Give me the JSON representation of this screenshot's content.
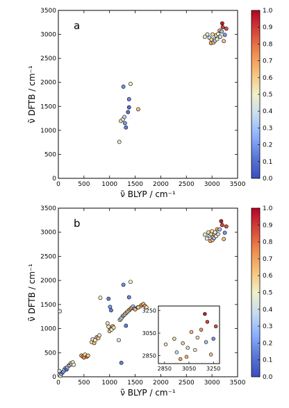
{
  "colormap": {
    "stops": [
      "#3b4cc0",
      "#5a78d6",
      "#8db0fe",
      "#c5dbf0",
      "#f0f0c8",
      "#f7c27a",
      "#ef8a4f",
      "#d6463a",
      "#b40426"
    ]
  },
  "colorbar": {
    "ticks": [
      "0.0",
      "0.1",
      "0.2",
      "0.3",
      "0.4",
      "0.5",
      "0.6",
      "0.7",
      "0.8",
      "0.9",
      "1.0"
    ]
  },
  "chart_data": [
    {
      "type": "scatter",
      "panel_label": "a",
      "xlabel": "ν̃ BLYP / cm⁻¹",
      "ylabel": "ν̃ DFTB / cm⁻¹",
      "xlim": [
        0,
        3500
      ],
      "ylim": [
        0,
        3500
      ],
      "xticks": [
        0,
        500,
        1000,
        1500,
        2000,
        2500,
        3000,
        3500
      ],
      "yticks": [
        0,
        500,
        1000,
        1500,
        2000,
        2500,
        3000,
        3500
      ],
      "clim": [
        0,
        1
      ],
      "points": [
        {
          "x": 1190,
          "y": 760,
          "c": 0.45
        },
        {
          "x": 1220,
          "y": 1195,
          "c": 0.55
        },
        {
          "x": 1260,
          "y": 1230,
          "c": 0.42
        },
        {
          "x": 1290,
          "y": 1280,
          "c": 0.35
        },
        {
          "x": 1300,
          "y": 1150,
          "c": 0.2
        },
        {
          "x": 1320,
          "y": 1060,
          "c": 0.15
        },
        {
          "x": 1360,
          "y": 1380,
          "c": 0.12
        },
        {
          "x": 1380,
          "y": 1480,
          "c": 0.1
        },
        {
          "x": 1270,
          "y": 1910,
          "c": 0.18
        },
        {
          "x": 1380,
          "y": 1650,
          "c": 0.16
        },
        {
          "x": 1410,
          "y": 1970,
          "c": 0.5
        },
        {
          "x": 1560,
          "y": 1440,
          "c": 0.62
        },
        {
          "x": 2860,
          "y": 2950,
          "c": 0.52
        },
        {
          "x": 2910,
          "y": 3000,
          "c": 0.45
        },
        {
          "x": 2950,
          "y": 2930,
          "c": 0.38
        },
        {
          "x": 2980,
          "y": 2820,
          "c": 0.68
        },
        {
          "x": 2990,
          "y": 2890,
          "c": 0.58
        },
        {
          "x": 3010,
          "y": 3000,
          "c": 0.55
        },
        {
          "x": 3030,
          "y": 2830,
          "c": 0.65
        },
        {
          "x": 3050,
          "y": 2900,
          "c": 0.42
        },
        {
          "x": 3060,
          "y": 2870,
          "c": 0.35
        },
        {
          "x": 3080,
          "y": 2980,
          "c": 0.6
        },
        {
          "x": 3100,
          "y": 2900,
          "c": 0.48
        },
        {
          "x": 3120,
          "y": 3010,
          "c": 0.52
        },
        {
          "x": 3150,
          "y": 3080,
          "c": 0.7
        },
        {
          "x": 3160,
          "y": 2950,
          "c": 0.4
        },
        {
          "x": 3190,
          "y": 3060,
          "c": 0.3
        },
        {
          "x": 3200,
          "y": 3230,
          "c": 0.95
        },
        {
          "x": 3210,
          "y": 3150,
          "c": 0.88
        },
        {
          "x": 3230,
          "y": 2860,
          "c": 0.62
        },
        {
          "x": 3250,
          "y": 2990,
          "c": 0.2
        },
        {
          "x": 3280,
          "y": 3120,
          "c": 0.85
        }
      ]
    },
    {
      "type": "scatter",
      "panel_label": "b",
      "xlabel": "ν̃ BLYP / cm⁻¹",
      "ylabel": "ν̃ DFTB / cm⁻¹",
      "xlim": [
        0,
        3500
      ],
      "ylim": [
        0,
        3500
      ],
      "xticks": [
        0,
        500,
        1000,
        1500,
        2000,
        2500,
        3000,
        3500
      ],
      "yticks": [
        0,
        500,
        1000,
        1500,
        2000,
        2500,
        3000,
        3500
      ],
      "clim": [
        0,
        1
      ],
      "points": [
        {
          "x": 20,
          "y": 40,
          "c": 0.55
        },
        {
          "x": 40,
          "y": 20,
          "c": 0.45
        },
        {
          "x": 60,
          "y": 60,
          "c": 0.3
        },
        {
          "x": 80,
          "y": 90,
          "c": 0.15
        },
        {
          "x": 100,
          "y": 110,
          "c": 0.25
        },
        {
          "x": 120,
          "y": 150,
          "c": 0.35
        },
        {
          "x": 140,
          "y": 180,
          "c": 0.2
        },
        {
          "x": 160,
          "y": 150,
          "c": 0.1
        },
        {
          "x": 180,
          "y": 200,
          "c": 0.4
        },
        {
          "x": 200,
          "y": 230,
          "c": 0.5
        },
        {
          "x": 220,
          "y": 240,
          "c": 0.3
        },
        {
          "x": 240,
          "y": 280,
          "c": 0.55
        },
        {
          "x": 260,
          "y": 260,
          "c": 0.6
        },
        {
          "x": 280,
          "y": 300,
          "c": 0.45
        },
        {
          "x": 300,
          "y": 250,
          "c": 0.5
        },
        {
          "x": 30,
          "y": 1360,
          "c": 0.45
        },
        {
          "x": 20,
          "y": 120,
          "c": 0.4
        },
        {
          "x": 450,
          "y": 440,
          "c": 0.65
        },
        {
          "x": 480,
          "y": 420,
          "c": 0.7
        },
        {
          "x": 500,
          "y": 400,
          "c": 0.75
        },
        {
          "x": 520,
          "y": 460,
          "c": 0.55
        },
        {
          "x": 560,
          "y": 420,
          "c": 0.8
        },
        {
          "x": 580,
          "y": 440,
          "c": 0.6
        },
        {
          "x": 650,
          "y": 720,
          "c": 0.55
        },
        {
          "x": 670,
          "y": 780,
          "c": 0.4
        },
        {
          "x": 700,
          "y": 700,
          "c": 0.65
        },
        {
          "x": 720,
          "y": 760,
          "c": 0.5
        },
        {
          "x": 750,
          "y": 820,
          "c": 0.7
        },
        {
          "x": 780,
          "y": 800,
          "c": 0.6
        },
        {
          "x": 800,
          "y": 860,
          "c": 0.45
        },
        {
          "x": 820,
          "y": 1640,
          "c": 0.5
        },
        {
          "x": 960,
          "y": 1110,
          "c": 0.55
        },
        {
          "x": 1000,
          "y": 950,
          "c": 0.6
        },
        {
          "x": 1020,
          "y": 1000,
          "c": 0.65
        },
        {
          "x": 1040,
          "y": 980,
          "c": 0.5
        },
        {
          "x": 1060,
          "y": 1050,
          "c": 0.7
        },
        {
          "x": 1080,
          "y": 1020,
          "c": 0.55
        },
        {
          "x": 980,
          "y": 1040,
          "c": 0.45
        },
        {
          "x": 980,
          "y": 1620,
          "c": 0.15
        },
        {
          "x": 1010,
          "y": 1450,
          "c": 0.2
        },
        {
          "x": 1030,
          "y": 1380,
          "c": 0.15
        },
        {
          "x": 1180,
          "y": 760,
          "c": 0.45
        },
        {
          "x": 1230,
          "y": 290,
          "c": 0.15
        },
        {
          "x": 1200,
          "y": 1180,
          "c": 0.55
        },
        {
          "x": 1220,
          "y": 1200,
          "c": 0.35
        },
        {
          "x": 1240,
          "y": 1230,
          "c": 0.5
        },
        {
          "x": 1260,
          "y": 1260,
          "c": 0.25
        },
        {
          "x": 1280,
          "y": 1280,
          "c": 0.6
        },
        {
          "x": 1300,
          "y": 1300,
          "c": 0.4
        },
        {
          "x": 1320,
          "y": 1320,
          "c": 0.55
        },
        {
          "x": 1340,
          "y": 1340,
          "c": 0.65
        },
        {
          "x": 1360,
          "y": 1360,
          "c": 0.5
        },
        {
          "x": 1380,
          "y": 1380,
          "c": 0.45
        },
        {
          "x": 1400,
          "y": 1400,
          "c": 0.7
        },
        {
          "x": 1420,
          "y": 1420,
          "c": 0.6
        },
        {
          "x": 1440,
          "y": 1440,
          "c": 0.55
        },
        {
          "x": 1460,
          "y": 1460,
          "c": 0.35
        },
        {
          "x": 1480,
          "y": 1420,
          "c": 0.2
        },
        {
          "x": 1500,
          "y": 1400,
          "c": 0.65
        },
        {
          "x": 1550,
          "y": 1440,
          "c": 0.6
        },
        {
          "x": 1600,
          "y": 1460,
          "c": 0.5
        },
        {
          "x": 1630,
          "y": 1490,
          "c": 0.75
        },
        {
          "x": 1660,
          "y": 1510,
          "c": 0.65
        },
        {
          "x": 1690,
          "y": 1470,
          "c": 0.7
        },
        {
          "x": 1720,
          "y": 1440,
          "c": 0.55
        },
        {
          "x": 1270,
          "y": 1910,
          "c": 0.18
        },
        {
          "x": 1380,
          "y": 1650,
          "c": 0.16
        },
        {
          "x": 1410,
          "y": 1970,
          "c": 0.5
        },
        {
          "x": 1560,
          "y": 1440,
          "c": 0.62
        },
        {
          "x": 1320,
          "y": 1060,
          "c": 0.15
        },
        {
          "x": 2860,
          "y": 2950,
          "c": 0.52
        },
        {
          "x": 2900,
          "y": 2870,
          "c": 0.45
        },
        {
          "x": 2930,
          "y": 3000,
          "c": 0.55
        },
        {
          "x": 2950,
          "y": 2930,
          "c": 0.38
        },
        {
          "x": 2970,
          "y": 2820,
          "c": 0.68
        },
        {
          "x": 2980,
          "y": 2960,
          "c": 0.58
        },
        {
          "x": 3000,
          "y": 3020,
          "c": 0.55
        },
        {
          "x": 3010,
          "y": 2840,
          "c": 0.65
        },
        {
          "x": 3020,
          "y": 2900,
          "c": 0.42
        },
        {
          "x": 3040,
          "y": 2880,
          "c": 0.3
        },
        {
          "x": 3050,
          "y": 2960,
          "c": 0.6
        },
        {
          "x": 3060,
          "y": 3000,
          "c": 0.48
        },
        {
          "x": 3080,
          "y": 2920,
          "c": 0.52
        },
        {
          "x": 3100,
          "y": 3060,
          "c": 0.7
        },
        {
          "x": 3120,
          "y": 2960,
          "c": 0.4
        },
        {
          "x": 3150,
          "y": 3060,
          "c": 0.3
        },
        {
          "x": 3180,
          "y": 3230,
          "c": 0.95
        },
        {
          "x": 3200,
          "y": 3150,
          "c": 0.88
        },
        {
          "x": 3230,
          "y": 2860,
          "c": 0.62
        },
        {
          "x": 3250,
          "y": 2990,
          "c": 0.2
        },
        {
          "x": 3280,
          "y": 3120,
          "c": 0.85
        }
      ],
      "inset": {
        "xlim": [
          2800,
          3300
        ],
        "ylim": [
          2780,
          3290
        ],
        "xticks": [
          2850,
          3050,
          3250
        ],
        "yticks": [
          2850,
          3050,
          3250
        ],
        "points": [
          {
            "x": 2860,
            "y": 2950,
            "c": 0.52
          },
          {
            "x": 2930,
            "y": 3000,
            "c": 0.55
          },
          {
            "x": 2950,
            "y": 2880,
            "c": 0.38
          },
          {
            "x": 2980,
            "y": 2820,
            "c": 0.68
          },
          {
            "x": 3000,
            "y": 2960,
            "c": 0.58
          },
          {
            "x": 3030,
            "y": 2840,
            "c": 0.65
          },
          {
            "x": 3040,
            "y": 2920,
            "c": 0.42
          },
          {
            "x": 3070,
            "y": 3060,
            "c": 0.6
          },
          {
            "x": 3100,
            "y": 2900,
            "c": 0.48
          },
          {
            "x": 3120,
            "y": 3010,
            "c": 0.52
          },
          {
            "x": 3150,
            "y": 3080,
            "c": 0.7
          },
          {
            "x": 3180,
            "y": 3220,
            "c": 0.95
          },
          {
            "x": 3190,
            "y": 2970,
            "c": 0.3
          },
          {
            "x": 3200,
            "y": 3150,
            "c": 0.88
          },
          {
            "x": 3230,
            "y": 2860,
            "c": 0.62
          },
          {
            "x": 3250,
            "y": 3000,
            "c": 0.2
          },
          {
            "x": 3270,
            "y": 3110,
            "c": 0.85
          }
        ]
      }
    }
  ]
}
